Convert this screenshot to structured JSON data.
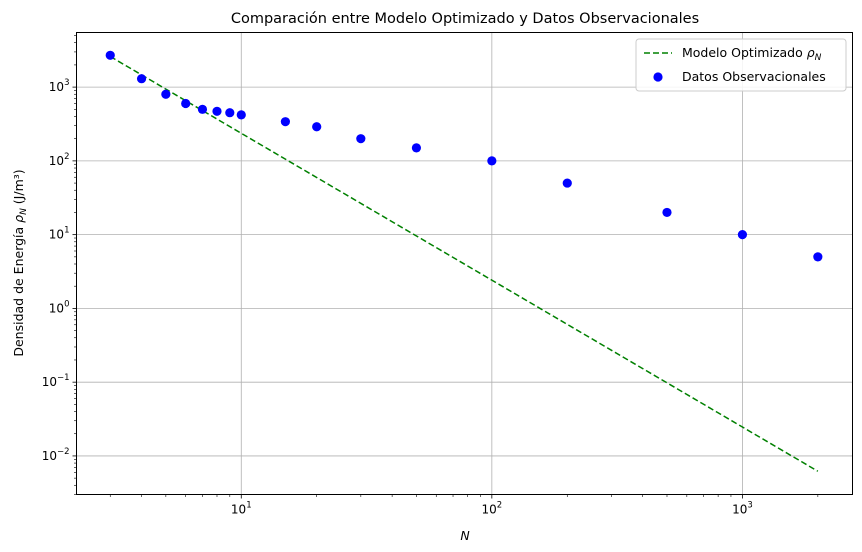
{
  "chart_data": {
    "type": "scatter",
    "title": "Comparación entre Modelo Optimizado y Datos Observacionales",
    "xlabel": "N",
    "ylabel": "Densidad de Energía ρ_N (J/m³)",
    "xscale": "log",
    "yscale": "log",
    "xlim": [
      2.2,
      2750
    ],
    "ylim": [
      0.003,
      5500
    ],
    "grid": true,
    "legend_position": "top-right",
    "x_ticks": [
      {
        "value": 10,
        "base": "10",
        "exp": "1"
      },
      {
        "value": 100,
        "base": "10",
        "exp": "2"
      },
      {
        "value": 1000,
        "base": "10",
        "exp": "3"
      }
    ],
    "y_ticks": [
      {
        "value": 0.01,
        "base": "10",
        "exp": "−2"
      },
      {
        "value": 0.1,
        "base": "10",
        "exp": "−1"
      },
      {
        "value": 1,
        "base": "10",
        "exp": "0"
      },
      {
        "value": 10,
        "base": "10",
        "exp": "1"
      },
      {
        "value": 100,
        "base": "10",
        "exp": "2"
      },
      {
        "value": 1000,
        "base": "10",
        "exp": "3"
      }
    ],
    "series": [
      {
        "name": "Modelo Optimizado ρ_N",
        "kind": "line",
        "style": "dashed",
        "color": "#008000",
        "x": [
          3,
          2000
        ],
        "y": [
          2600,
          0.0062
        ]
      },
      {
        "name": "Datos Observacionales",
        "kind": "scatter",
        "color": "#0000ff",
        "x": [
          3,
          4,
          5,
          6,
          7,
          8,
          9,
          10,
          15,
          20,
          30,
          50,
          100,
          200,
          500,
          1000,
          2000
        ],
        "y": [
          2700,
          1300,
          800,
          600,
          500,
          470,
          450,
          420,
          340,
          290,
          200,
          150,
          100,
          50,
          20,
          10,
          5
        ]
      }
    ]
  }
}
